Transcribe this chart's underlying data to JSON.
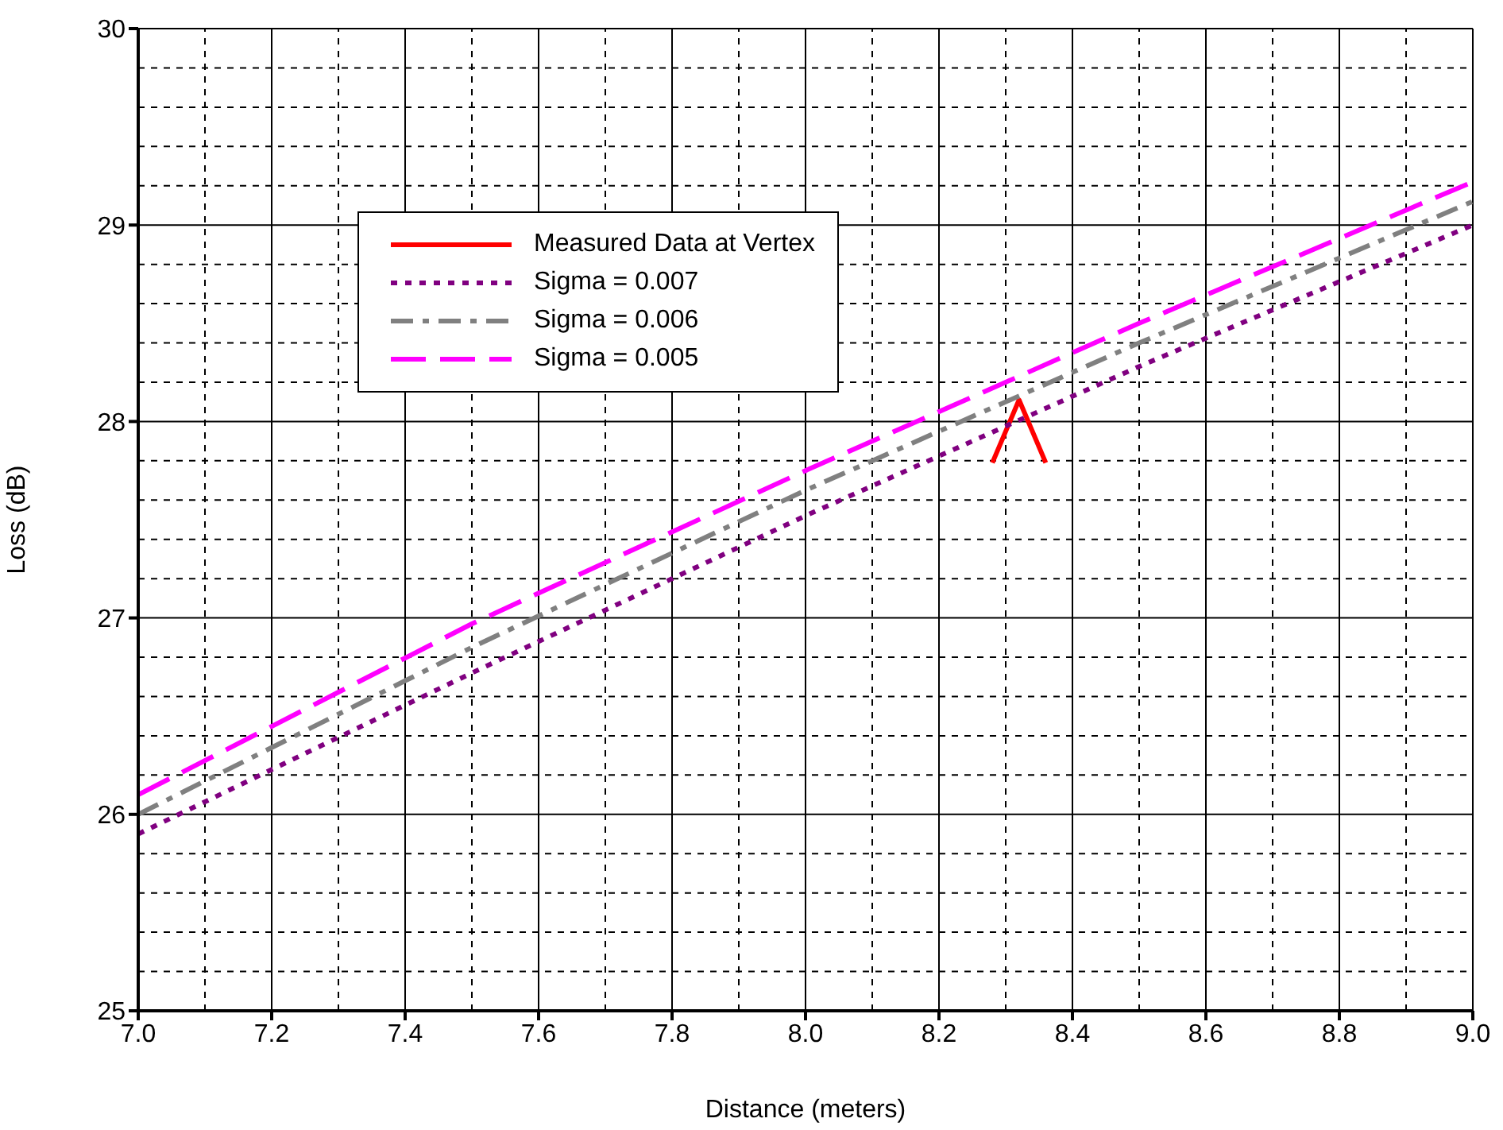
{
  "chart_data": {
    "type": "line",
    "xlabel": "Distance (meters)",
    "ylabel": "Loss (dB)",
    "xlim": [
      7,
      9
    ],
    "xticks": [
      {
        "value": 7,
        "label": "7.0"
      },
      {
        "value": 7.2,
        "label": "7.2"
      },
      {
        "value": 7.4,
        "label": "7.4"
      },
      {
        "value": 7.6,
        "label": "7.6"
      },
      {
        "value": 7.8,
        "label": "7.8"
      },
      {
        "value": 8,
        "label": "8.0"
      },
      {
        "value": 8.2,
        "label": "8.2"
      },
      {
        "value": 8.4,
        "label": "8.4"
      },
      {
        "value": 8.6,
        "label": "8.6"
      },
      {
        "value": 8.8,
        "label": "8.8"
      },
      {
        "value": 9,
        "label": "9.0"
      }
    ],
    "ylim": [
      25,
      30
    ],
    "yticks": [
      25,
      26,
      27,
      28,
      29,
      30
    ],
    "grid": true,
    "legend": "top left",
    "marker": "none",
    "series": [
      {
        "name": "Measured Data at Vertex",
        "color": "#ff0000",
        "line_style": "solid",
        "x": [
          8.28,
          8.32,
          8.36
        ],
        "values": [
          27.79,
          28.11,
          27.79
        ]
      },
      {
        "name": "Sigma = 0.007",
        "color": "#800080",
        "line_style": "dotted",
        "x": [
          7,
          7.5,
          8,
          8.5,
          9
        ],
        "values": [
          25.9,
          26.72,
          27.52,
          28.28,
          29.0
        ]
      },
      {
        "name": "Sigma = 0.006",
        "color": "#808080",
        "line_style": "dashed",
        "x": [
          7,
          7.5,
          8,
          8.5,
          9
        ],
        "values": [
          26.0,
          26.85,
          27.65,
          28.4,
          29.12
        ]
      },
      {
        "name": "Sigma = 0.005",
        "color": "#ff00ff",
        "line_style": "dashed",
        "x": [
          7,
          7.5,
          8,
          8.5,
          9
        ],
        "values": [
          26.1,
          26.97,
          27.75,
          28.5,
          29.22
        ]
      }
    ]
  }
}
